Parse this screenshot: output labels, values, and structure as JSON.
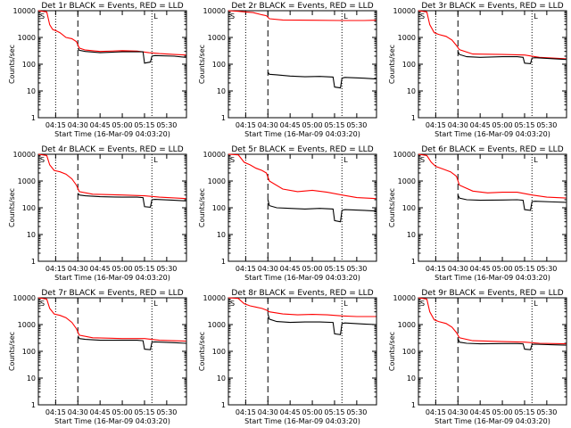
{
  "chart_data": [
    {
      "type": "line",
      "title": "Det 1r BLACK = Events, RED = LLD",
      "ylabel": "Counts/sec",
      "xlabel": "Start Time (16-Mar-09 04:03:20)",
      "yscale": "log",
      "ylim": [
        1,
        10000
      ],
      "xlim": [
        "04:03:20",
        "05:43:20"
      ],
      "x_ticks": [
        "04:15",
        "04:30",
        "04:45",
        "05:00",
        "05:15",
        "05:30"
      ],
      "y_ticks": [
        "1",
        "10",
        "100",
        "1000",
        "10000"
      ],
      "corner_labels": [
        "S",
        "L"
      ],
      "dotted_lines": [
        "04:15",
        "05:20"
      ],
      "dashed_line": "04:30",
      "grid": false,
      "legend": "none",
      "series": [
        {
          "color": "#ff0000",
          "x": [
            "04:03:20",
            "04:09",
            "04:11",
            "04:13",
            "04:15",
            "04:18",
            "04:22",
            "04:26",
            "04:29",
            "04:31",
            "04:35",
            "04:45",
            "05:00",
            "05:10",
            "05:18",
            "05:25",
            "05:35",
            "05:43"
          ],
          "values": [
            10000,
            9000,
            3000,
            2000,
            1800,
            1500,
            1000,
            900,
            700,
            400,
            340,
            300,
            320,
            310,
            270,
            250,
            230,
            220
          ]
        },
        {
          "color": "#000000",
          "x": [
            "04:30",
            "04:31",
            "04:35",
            "04:45",
            "05:00",
            "05:10",
            "05:14",
            "05:15",
            "05:19",
            "05:20",
            "05:22",
            "05:35",
            "05:43"
          ],
          "values": [
            400,
            330,
            300,
            270,
            290,
            290,
            290,
            110,
            120,
            200,
            210,
            200,
            180
          ]
        }
      ]
    },
    {
      "type": "line",
      "title": "Det 2r BLACK = Events, RED = LLD",
      "ylabel": "Counts/sec",
      "xlabel": "Start Time (16-Mar-09 04:03:20)",
      "yscale": "log",
      "ylim": [
        1,
        10000
      ],
      "xlim": [
        "04:03:20",
        "05:43:20"
      ],
      "x_ticks": [
        "04:15",
        "04:30",
        "04:45",
        "05:00",
        "05:15",
        "05:30"
      ],
      "y_ticks": [
        "1",
        "10",
        "100",
        "1000",
        "10000"
      ],
      "corner_labels": [
        "S",
        "L"
      ],
      "dotted_lines": [
        "04:15",
        "05:20"
      ],
      "dashed_line": "04:30",
      "grid": false,
      "legend": "none",
      "series": [
        {
          "color": "#ff0000",
          "x": [
            "04:03:20",
            "04:10",
            "04:15",
            "04:20",
            "04:26",
            "04:29",
            "04:31",
            "04:40",
            "05:00",
            "05:20",
            "05:35",
            "05:43"
          ],
          "values": [
            10000,
            9500,
            9000,
            8500,
            7000,
            6500,
            5000,
            4500,
            4400,
            4300,
            4300,
            4400
          ]
        },
        {
          "color": "#000000",
          "x": [
            "04:30",
            "04:31",
            "04:36",
            "04:45",
            "04:55",
            "05:05",
            "05:14",
            "05:15",
            "05:19",
            "05:20",
            "05:22",
            "05:35",
            "05:43"
          ],
          "values": [
            50,
            42,
            40,
            36,
            34,
            35,
            33,
            14,
            13,
            30,
            32,
            30,
            28
          ]
        }
      ]
    },
    {
      "type": "line",
      "title": "Det 3r BLACK = Events, RED = LLD",
      "ylabel": "Counts/sec",
      "xlabel": "Start Time (16-Mar-09 04:03:20)",
      "yscale": "log",
      "ylim": [
        1,
        10000
      ],
      "xlim": [
        "04:03:20",
        "05:43:20"
      ],
      "x_ticks": [
        "04:15",
        "04:30",
        "04:45",
        "05:00",
        "05:15",
        "05:30"
      ],
      "y_ticks": [
        "1",
        "10",
        "100",
        "1000",
        "10000"
      ],
      "corner_labels": [
        "S",
        "L"
      ],
      "dotted_lines": [
        "04:15",
        "05:20"
      ],
      "dashed_line": "04:30",
      "grid": false,
      "legend": "none",
      "series": [
        {
          "color": "#ff0000",
          "x": [
            "04:03:20",
            "04:09",
            "04:11",
            "04:14",
            "04:17",
            "04:22",
            "04:26",
            "04:29",
            "04:31",
            "04:40",
            "05:00",
            "05:15",
            "05:25",
            "05:43"
          ],
          "values": [
            10000,
            9000,
            3000,
            1500,
            1300,
            1100,
            800,
            500,
            350,
            240,
            230,
            220,
            180,
            160
          ]
        },
        {
          "color": "#000000",
          "x": [
            "04:30",
            "04:31",
            "04:36",
            "04:45",
            "05:00",
            "05:10",
            "05:14",
            "05:15",
            "05:19",
            "05:20",
            "05:22",
            "05:35",
            "05:43"
          ],
          "values": [
            300,
            230,
            190,
            180,
            190,
            190,
            180,
            110,
            105,
            170,
            175,
            160,
            150
          ]
        }
      ]
    },
    {
      "type": "line",
      "title": "Det 4r BLACK = Events, RED = LLD",
      "ylabel": "Counts/sec",
      "xlabel": "Start Time (16-Mar-09 04:03:20)",
      "yscale": "log",
      "ylim": [
        1,
        10000
      ],
      "xlim": [
        "04:03:20",
        "05:43:20"
      ],
      "x_ticks": [
        "04:15",
        "04:30",
        "04:45",
        "05:00",
        "05:15",
        "05:30"
      ],
      "y_ticks": [
        "1",
        "10",
        "100",
        "1000",
        "10000"
      ],
      "corner_labels": [
        "S",
        "L"
      ],
      "dotted_lines": [
        "04:15",
        "05:20"
      ],
      "dashed_line": "04:30",
      "grid": false,
      "legend": "none",
      "series": [
        {
          "color": "#ff0000",
          "x": [
            "04:03:20",
            "04:09",
            "04:11",
            "04:14",
            "04:18",
            "04:22",
            "04:26",
            "04:29",
            "04:31",
            "04:40",
            "05:00",
            "05:15",
            "05:25",
            "05:43"
          ],
          "values": [
            10000,
            9000,
            4000,
            2500,
            2200,
            1800,
            1200,
            700,
            400,
            320,
            300,
            280,
            250,
            220
          ]
        },
        {
          "color": "#000000",
          "x": [
            "04:30",
            "04:31",
            "04:35",
            "04:45",
            "05:00",
            "05:10",
            "05:14",
            "05:15",
            "05:19",
            "05:20",
            "05:22",
            "05:35",
            "05:43"
          ],
          "values": [
            350,
            300,
            280,
            260,
            250,
            250,
            240,
            110,
            105,
            200,
            205,
            190,
            180
          ]
        }
      ]
    },
    {
      "type": "line",
      "title": "Det 5r BLACK = Events, RED = LLD",
      "ylabel": "Counts/sec",
      "xlabel": "Start Time (16-Mar-09 04:03:20)",
      "yscale": "log",
      "ylim": [
        1,
        10000
      ],
      "xlim": [
        "04:03:20",
        "05:43:20"
      ],
      "x_ticks": [
        "04:15",
        "04:30",
        "04:45",
        "05:00",
        "05:15",
        "05:30"
      ],
      "y_ticks": [
        "1",
        "10",
        "100",
        "1000",
        "10000"
      ],
      "corner_labels": [
        "S",
        "L"
      ],
      "dotted_lines": [
        "04:15",
        "05:20"
      ],
      "dashed_line": "04:30",
      "grid": false,
      "legend": "none",
      "series": [
        {
          "color": "#ff0000",
          "x": [
            "04:03:20",
            "04:10",
            "04:14",
            "04:18",
            "04:22",
            "04:26",
            "04:29",
            "04:31",
            "04:40",
            "04:50",
            "05:00",
            "05:10",
            "05:20",
            "05:30",
            "05:43"
          ],
          "values": [
            10000,
            9500,
            5000,
            4000,
            3000,
            2500,
            2000,
            1000,
            500,
            400,
            450,
            380,
            300,
            240,
            220
          ]
        },
        {
          "color": "#000000",
          "x": [
            "04:30",
            "04:31",
            "04:36",
            "04:45",
            "04:55",
            "05:05",
            "05:14",
            "05:15",
            "05:19",
            "05:20",
            "05:22",
            "05:35",
            "05:43"
          ],
          "values": [
            200,
            120,
            100,
            95,
            90,
            95,
            90,
            33,
            30,
            80,
            85,
            80,
            75
          ]
        }
      ]
    },
    {
      "type": "line",
      "title": "Det 6r BLACK = Events, RED = LLD",
      "ylabel": "Counts/sec",
      "xlabel": "Start Time (16-Mar-09 04:03:20)",
      "yscale": "log",
      "ylim": [
        1,
        10000
      ],
      "xlim": [
        "04:03:20",
        "05:43:20"
      ],
      "x_ticks": [
        "04:15",
        "04:30",
        "04:45",
        "05:00",
        "05:15",
        "05:30"
      ],
      "y_ticks": [
        "1",
        "10",
        "100",
        "1000",
        "10000"
      ],
      "corner_labels": [
        "S",
        "L"
      ],
      "dotted_lines": [
        "04:15",
        "05:20"
      ],
      "dashed_line": "04:30",
      "grid": false,
      "legend": "none",
      "series": [
        {
          "color": "#ff0000",
          "x": [
            "04:03:20",
            "04:09",
            "04:12",
            "04:15",
            "04:20",
            "04:25",
            "04:29",
            "04:31",
            "04:40",
            "04:50",
            "05:00",
            "05:10",
            "05:20",
            "05:30",
            "05:43"
          ],
          "values": [
            10000,
            9000,
            5000,
            3500,
            2800,
            2200,
            1500,
            700,
            420,
            360,
            380,
            380,
            300,
            250,
            230
          ]
        },
        {
          "color": "#000000",
          "x": [
            "04:30",
            "04:31",
            "04:36",
            "04:45",
            "05:00",
            "05:10",
            "05:14",
            "05:15",
            "05:19",
            "05:20",
            "05:22",
            "05:35",
            "05:43"
          ],
          "values": [
            300,
            230,
            200,
            190,
            195,
            200,
            190,
            85,
            80,
            170,
            175,
            165,
            160
          ]
        }
      ]
    },
    {
      "type": "line",
      "title": "Det 7r BLACK = Events, RED = LLD",
      "ylabel": "Counts/sec",
      "xlabel": "Start Time (16-Mar-09 04:03:20)",
      "yscale": "log",
      "ylim": [
        1,
        10000
      ],
      "xlim": [
        "04:03:20",
        "05:43:20"
      ],
      "x_ticks": [
        "04:15",
        "04:30",
        "04:45",
        "05:00",
        "05:15",
        "05:30"
      ],
      "y_ticks": [
        "1",
        "10",
        "100",
        "1000",
        "10000"
      ],
      "corner_labels": [
        "S",
        "L"
      ],
      "dotted_lines": [
        "04:15",
        "05:20"
      ],
      "dashed_line": "04:30",
      "grid": false,
      "legend": "none",
      "series": [
        {
          "color": "#ff0000",
          "x": [
            "04:03:20",
            "04:09",
            "04:11",
            "04:14",
            "04:18",
            "04:22",
            "04:26",
            "04:29",
            "04:31",
            "04:40",
            "05:00",
            "05:15",
            "05:25",
            "05:43"
          ],
          "values": [
            10000,
            9000,
            4000,
            2500,
            2200,
            1800,
            1200,
            700,
            400,
            320,
            300,
            300,
            260,
            240
          ]
        },
        {
          "color": "#000000",
          "x": [
            "04:30",
            "04:31",
            "04:35",
            "04:45",
            "05:00",
            "05:10",
            "05:14",
            "05:15",
            "05:19",
            "05:20",
            "05:22",
            "05:35",
            "05:43"
          ],
          "values": [
            380,
            300,
            280,
            260,
            260,
            260,
            250,
            120,
            115,
            220,
            225,
            210,
            200
          ]
        }
      ]
    },
    {
      "type": "line",
      "title": "Det 8r BLACK = Events, RED = LLD",
      "ylabel": "Counts/sec",
      "xlabel": "Start Time (16-Mar-09 04:03:20)",
      "yscale": "log",
      "ylim": [
        1,
        10000
      ],
      "xlim": [
        "04:03:20",
        "05:43:20"
      ],
      "x_ticks": [
        "04:15",
        "04:30",
        "04:45",
        "05:00",
        "05:15",
        "05:30"
      ],
      "y_ticks": [
        "1",
        "10",
        "100",
        "1000",
        "10000"
      ],
      "corner_labels": [
        "S",
        "L"
      ],
      "dotted_lines": [
        "04:15",
        "05:20"
      ],
      "dashed_line": "04:30",
      "grid": false,
      "legend": "none",
      "series": [
        {
          "color": "#ff0000",
          "x": [
            "04:03:20",
            "04:10",
            "04:14",
            "04:18",
            "04:22",
            "04:26",
            "04:29",
            "04:31",
            "04:40",
            "04:50",
            "05:00",
            "05:10",
            "05:20",
            "05:30",
            "05:43"
          ],
          "values": [
            10000,
            9500,
            6000,
            5000,
            4500,
            4000,
            3500,
            3000,
            2500,
            2300,
            2400,
            2300,
            2100,
            2000,
            2000
          ]
        },
        {
          "color": "#000000",
          "x": [
            "04:30",
            "04:31",
            "04:36",
            "04:45",
            "04:55",
            "05:05",
            "05:14",
            "05:15",
            "05:19",
            "05:20",
            "05:22",
            "05:35",
            "05:43"
          ],
          "values": [
            2500,
            1600,
            1300,
            1200,
            1250,
            1250,
            1200,
            450,
            420,
            1100,
            1150,
            1050,
            1000
          ]
        }
      ]
    },
    {
      "type": "line",
      "title": "Det 9r BLACK = Events, RED = LLD",
      "ylabel": "Counts/sec",
      "xlabel": "Start Time (16-Mar-09 04:03:20)",
      "yscale": "log",
      "ylim": [
        1,
        10000
      ],
      "xlim": [
        "04:03:20",
        "05:43:20"
      ],
      "x_ticks": [
        "04:15",
        "04:30",
        "04:45",
        "05:00",
        "05:15",
        "05:30"
      ],
      "y_ticks": [
        "1",
        "10",
        "100",
        "1000",
        "10000"
      ],
      "corner_labels": [
        "S",
        "L"
      ],
      "dotted_lines": [
        "04:15",
        "05:20"
      ],
      "dashed_line": "04:30",
      "grid": false,
      "legend": "none",
      "series": [
        {
          "color": "#ff0000",
          "x": [
            "04:03:20",
            "04:09",
            "04:11",
            "04:14",
            "04:17",
            "04:22",
            "04:26",
            "04:29",
            "04:31",
            "04:40",
            "05:00",
            "05:15",
            "05:25",
            "05:43"
          ],
          "values": [
            10000,
            9000,
            3000,
            1500,
            1300,
            1100,
            800,
            500,
            320,
            250,
            230,
            220,
            200,
            190
          ]
        },
        {
          "color": "#000000",
          "x": [
            "04:30",
            "04:31",
            "04:36",
            "04:45",
            "05:00",
            "05:10",
            "05:14",
            "05:15",
            "05:19",
            "05:20",
            "05:22",
            "05:35",
            "05:43"
          ],
          "values": [
            300,
            220,
            200,
            190,
            195,
            195,
            190,
            120,
            115,
            180,
            185,
            175,
            170
          ]
        }
      ]
    }
  ]
}
